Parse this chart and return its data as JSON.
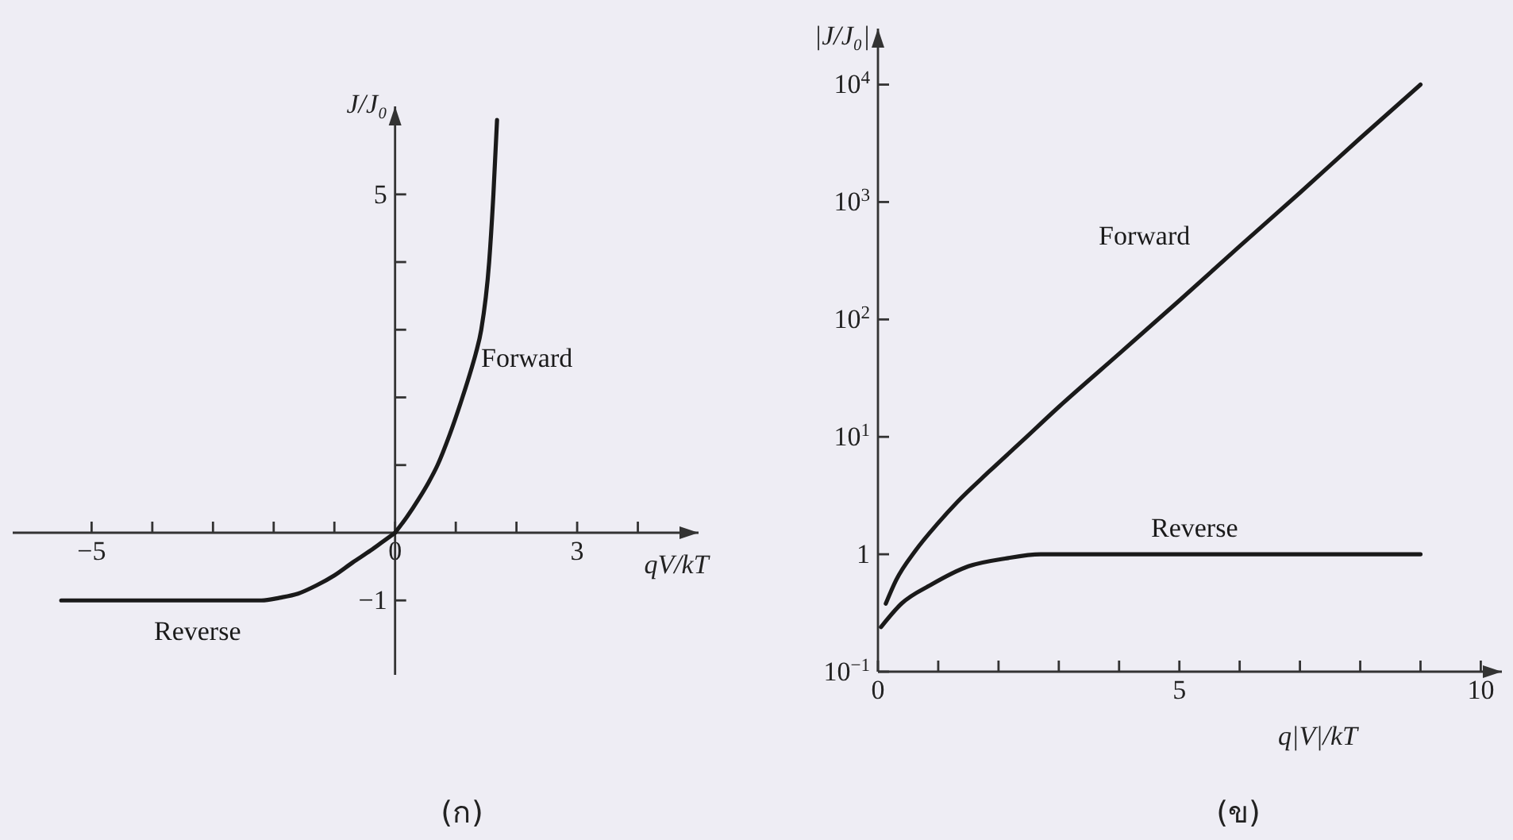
{
  "chart_data": [
    {
      "type": "line",
      "xlabel": "qV/kT",
      "ylabel": "J/J₀",
      "annotations": [
        "(ก)"
      ],
      "xlim": [
        -6.3,
        5.0
      ],
      "ylim": [
        -2.1,
        6.3
      ],
      "xticks": [
        {
          "value": -5,
          "label": "−5"
        },
        {
          "value": -4,
          "label": null
        },
        {
          "value": -3,
          "label": null
        },
        {
          "value": -2,
          "label": null
        },
        {
          "value": -1,
          "label": null
        },
        0,
        {
          "value": 1,
          "label": null
        },
        {
          "value": 2,
          "label": null
        },
        3,
        {
          "value": 4,
          "label": null
        }
      ],
      "yticks": [
        {
          "value": -1,
          "label": "−1"
        },
        {
          "value": 1,
          "label": null
        },
        {
          "value": 2,
          "label": null
        },
        {
          "value": 3,
          "label": null
        },
        {
          "value": 4,
          "label": null
        },
        5
      ],
      "series": [
        {
          "name": "Forward",
          "color": "#1a1a1a",
          "x": [
            0,
            0.2,
            0.39,
            0.55,
            0.7,
            0.9,
            1.11,
            1.25,
            1.33,
            1.42,
            1.55,
            1.62,
            1.68
          ],
          "values": [
            0,
            0.24,
            0.5,
            0.74,
            1.0,
            1.45,
            2.0,
            2.4,
            2.65,
            3.0,
            4.0,
            5.0,
            6.1
          ]
        },
        {
          "name": "Reverse",
          "color": "#1a1a1a",
          "x": [
            -5.5,
            -2.2,
            -1.9,
            -1.6,
            -1.3,
            -1.0,
            -0.7,
            -0.4,
            -0.2,
            0
          ],
          "values": [
            -1,
            -1,
            -0.96,
            -0.9,
            -0.78,
            -0.63,
            -0.44,
            -0.26,
            -0.13,
            0
          ]
        }
      ]
    },
    {
      "type": "line",
      "log": "y",
      "xlabel": "q|V|/kT",
      "ylabel": "|J/J₀|",
      "annotations": [
        "(ข)"
      ],
      "xlim": [
        0,
        10.35
      ],
      "ylim": [
        0.1,
        30000
      ],
      "xticks": [
        0,
        {
          "value": 1,
          "label": null
        },
        {
          "value": 2,
          "label": null
        },
        {
          "value": 3,
          "label": null
        },
        {
          "value": 4,
          "label": null
        },
        5,
        {
          "value": 6,
          "label": null
        },
        {
          "value": 7,
          "label": null
        },
        {
          "value": 8,
          "label": null
        },
        {
          "value": 9,
          "label": null
        },
        10
      ],
      "yticks": [
        {
          "value": 0.1,
          "label": "10$^{−1}$"
        },
        1,
        {
          "value": 10,
          "label": "10$^{1}$"
        },
        {
          "value": 100,
          "label": "10$^{2}$"
        },
        {
          "value": 1000,
          "label": "10$^{3}$"
        },
        {
          "value": 10000,
          "label": "10$^{4}$"
        }
      ],
      "series": [
        {
          "name": "Forward",
          "color": "#1a1a1a",
          "x": [
            0.13,
            0.3,
            0.62,
            1.0,
            1.32,
            1.85,
            2.4,
            3,
            4,
            5,
            6,
            7,
            8,
            9
          ],
          "values": [
            0.38,
            0.6,
            1.07,
            1.85,
            2.8,
            5.1,
            9.3,
            18,
            51,
            145,
            420,
            1200,
            3500,
            10000
          ]
        },
        {
          "name": "Reverse",
          "color": "#1a1a1a",
          "x": [
            0.05,
            0.39,
            0.88,
            1.5,
            2.11,
            2.7,
            4,
            6,
            9
          ],
          "values": [
            0.24,
            0.38,
            0.55,
            0.79,
            0.92,
            1,
            1,
            1,
            1
          ]
        }
      ]
    }
  ]
}
